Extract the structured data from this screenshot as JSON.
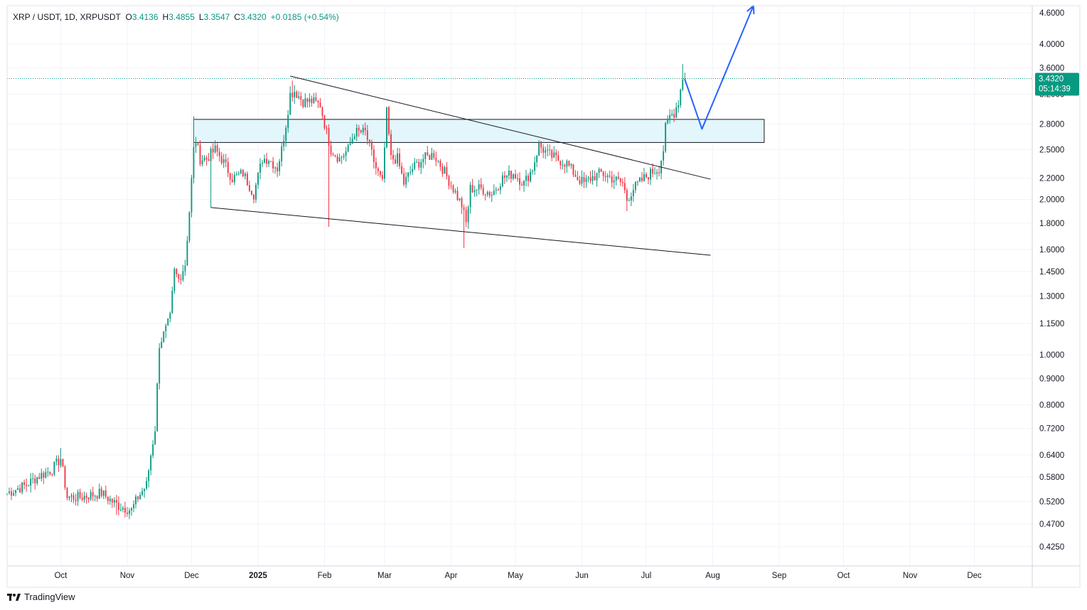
{
  "header": {
    "symbol": "XRP / USDT, 1D, XRPUSDT",
    "open_label": "O",
    "open": "3.4136",
    "high_label": "H",
    "high": "3.4855",
    "low_label": "L",
    "low": "3.3547",
    "close_label": "C",
    "close": "3.4320",
    "change": "+0.0185 (+0.54%)"
  },
  "price_badge": {
    "price": "3.4320",
    "countdown": "05:14:39"
  },
  "brand": {
    "name": "TradingView"
  },
  "colors": {
    "up": "#089981",
    "down": "#f23645",
    "zone_fill": "#e3f6fb",
    "projection": "#2962ff",
    "axis_text": "#131722"
  },
  "chart_data": {
    "type": "candlestick",
    "timeframe": "1D",
    "y_scale": "log",
    "ylim": [
      0.39,
      4.75
    ],
    "xlim": [
      "2024-09-06",
      "2025-12-28"
    ],
    "y_ticks": [
      "4.6000",
      "4.0000",
      "3.6000",
      "3.2000",
      "2.8000",
      "2.5000",
      "2.2000",
      "2.0000",
      "1.8000",
      "1.6000",
      "1.4500",
      "1.3000",
      "1.1500",
      "1.0000",
      "0.9000",
      "0.8000",
      "0.7200",
      "0.6400",
      "0.5800",
      "0.5200",
      "0.4700",
      "0.4250"
    ],
    "x_ticks": [
      {
        "label": "Oct",
        "date": "2024-10-01",
        "bold": false
      },
      {
        "label": "Nov",
        "date": "2024-11-01",
        "bold": false
      },
      {
        "label": "Dec",
        "date": "2024-12-01",
        "bold": false
      },
      {
        "label": "2025",
        "date": "2025-01-01",
        "bold": true
      },
      {
        "label": "Feb",
        "date": "2025-02-01",
        "bold": false
      },
      {
        "label": "Mar",
        "date": "2025-03-01",
        "bold": false
      },
      {
        "label": "Apr",
        "date": "2025-04-01",
        "bold": false
      },
      {
        "label": "May",
        "date": "2025-05-01",
        "bold": false
      },
      {
        "label": "Jun",
        "date": "2025-06-01",
        "bold": false
      },
      {
        "label": "Jul",
        "date": "2025-07-01",
        "bold": false
      },
      {
        "label": "Aug",
        "date": "2025-08-01",
        "bold": false
      },
      {
        "label": "Sep",
        "date": "2025-09-01",
        "bold": false
      },
      {
        "label": "Oct",
        "date": "2025-10-01",
        "bold": false
      },
      {
        "label": "Nov",
        "date": "2025-11-01",
        "bold": false
      },
      {
        "label": "Dec",
        "date": "2025-12-01",
        "bold": false
      }
    ],
    "close_anchors": [
      [
        "2024-09-06",
        0.54
      ],
      [
        "2024-09-15",
        0.56
      ],
      [
        "2024-09-20",
        0.58
      ],
      [
        "2024-09-27",
        0.6
      ],
      [
        "2024-10-01",
        0.63
      ],
      [
        "2024-10-04",
        0.53
      ],
      [
        "2024-10-10",
        0.53
      ],
      [
        "2024-10-20",
        0.54
      ],
      [
        "2024-10-25",
        0.52
      ],
      [
        "2024-10-28",
        0.51
      ],
      [
        "2024-11-03",
        0.5
      ],
      [
        "2024-11-06",
        0.53
      ],
      [
        "2024-11-10",
        0.56
      ],
      [
        "2024-11-12",
        0.64
      ],
      [
        "2024-11-14",
        0.72
      ],
      [
        "2024-11-16",
        1.05
      ],
      [
        "2024-11-19",
        1.12
      ],
      [
        "2024-11-21",
        1.18
      ],
      [
        "2024-11-23",
        1.45
      ],
      [
        "2024-11-25",
        1.4
      ],
      [
        "2024-11-28",
        1.5
      ],
      [
        "2024-11-30",
        1.9
      ],
      [
        "2024-12-02",
        2.5
      ],
      [
        "2024-12-03",
        2.6
      ],
      [
        "2024-12-05",
        2.4
      ],
      [
        "2024-12-08",
        2.4
      ],
      [
        "2024-12-12",
        2.5
      ],
      [
        "2024-12-15",
        2.4
      ],
      [
        "2024-12-20",
        2.2
      ],
      [
        "2024-12-25",
        2.25
      ],
      [
        "2024-12-30",
        2.05
      ],
      [
        "2025-01-03",
        2.4
      ],
      [
        "2025-01-06",
        2.4
      ],
      [
        "2025-01-10",
        2.3
      ],
      [
        "2025-01-12",
        2.5
      ],
      [
        "2025-01-14",
        2.8
      ],
      [
        "2025-01-16",
        3.2
      ],
      [
        "2025-01-18",
        3.25
      ],
      [
        "2025-01-22",
        3.1
      ],
      [
        "2025-01-26",
        3.1
      ],
      [
        "2025-01-30",
        3.05
      ],
      [
        "2025-02-02",
        2.7
      ],
      [
        "2025-02-04",
        2.5
      ],
      [
        "2025-02-08",
        2.4
      ],
      [
        "2025-02-12",
        2.5
      ],
      [
        "2025-02-15",
        2.7
      ],
      [
        "2025-02-20",
        2.7
      ],
      [
        "2025-02-25",
        2.3
      ],
      [
        "2025-02-28",
        2.15
      ],
      [
        "2025-03-02",
        2.95
      ],
      [
        "2025-03-04",
        2.4
      ],
      [
        "2025-03-07",
        2.4
      ],
      [
        "2025-03-10",
        2.15
      ],
      [
        "2025-03-14",
        2.3
      ],
      [
        "2025-03-19",
        2.4
      ],
      [
        "2025-03-24",
        2.45
      ],
      [
        "2025-03-28",
        2.3
      ],
      [
        "2025-04-02",
        2.1
      ],
      [
        "2025-04-06",
        1.95
      ],
      [
        "2025-04-08",
        1.8
      ],
      [
        "2025-04-10",
        2.1
      ],
      [
        "2025-04-15",
        2.1
      ],
      [
        "2025-04-20",
        2.05
      ],
      [
        "2025-04-25",
        2.2
      ],
      [
        "2025-04-30",
        2.25
      ],
      [
        "2025-05-05",
        2.15
      ],
      [
        "2025-05-09",
        2.3
      ],
      [
        "2025-05-12",
        2.55
      ],
      [
        "2025-05-16",
        2.45
      ],
      [
        "2025-05-20",
        2.4
      ],
      [
        "2025-05-25",
        2.35
      ],
      [
        "2025-05-30",
        2.2
      ],
      [
        "2025-06-02",
        2.15
      ],
      [
        "2025-06-05",
        2.2
      ],
      [
        "2025-06-10",
        2.25
      ],
      [
        "2025-06-15",
        2.2
      ],
      [
        "2025-06-20",
        2.15
      ],
      [
        "2025-06-22",
        2.0
      ],
      [
        "2025-06-25",
        2.1
      ],
      [
        "2025-06-30",
        2.2
      ],
      [
        "2025-07-03",
        2.25
      ],
      [
        "2025-07-07",
        2.3
      ],
      [
        "2025-07-09",
        2.5
      ],
      [
        "2025-07-10",
        2.75
      ],
      [
        "2025-07-12",
        2.9
      ],
      [
        "2025-07-14",
        2.95
      ],
      [
        "2025-07-16",
        3.1
      ],
      [
        "2025-07-18",
        3.45
      ],
      [
        "2025-07-19",
        3.43
      ]
    ],
    "spikes": [
      [
        "2024-10-01",
        0.66,
        null
      ],
      [
        "2024-10-27",
        null,
        0.49
      ],
      [
        "2024-12-02",
        2.9,
        null
      ],
      [
        "2024-12-10",
        null,
        1.93
      ],
      [
        "2025-01-17",
        3.4,
        null
      ],
      [
        "2025-02-03",
        null,
        1.77
      ],
      [
        "2025-03-02",
        3.0,
        null
      ],
      [
        "2025-04-07",
        null,
        1.61
      ],
      [
        "2025-06-22",
        null,
        1.9
      ],
      [
        "2025-07-18",
        3.66,
        null
      ]
    ],
    "annotations": {
      "resistance_zone": {
        "from": "2024-12-02",
        "to": "2025-08-25",
        "low": 2.58,
        "high": 2.86
      },
      "upper_trendline": {
        "from": [
          "2025-01-16",
          3.47
        ],
        "to": [
          "2025-07-31",
          2.19
        ]
      },
      "lower_trendline": {
        "from": [
          "2024-12-10",
          1.93
        ],
        "to": [
          "2025-07-31",
          1.56
        ]
      },
      "projection_path": [
        [
          "2025-07-19",
          3.42
        ],
        [
          "2025-07-27",
          2.74
        ],
        [
          "2025-08-20",
          4.75
        ]
      ],
      "last_price": 3.432
    }
  }
}
